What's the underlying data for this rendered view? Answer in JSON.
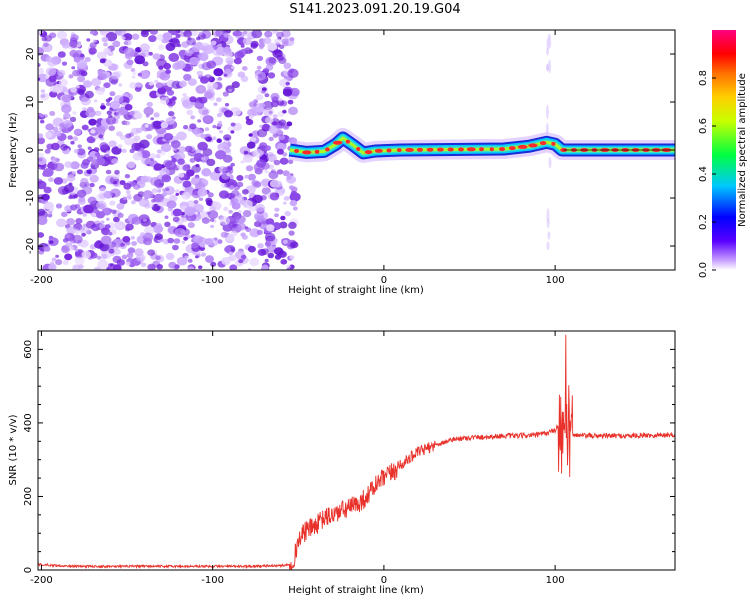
{
  "title": "S141.2023.091.20.19.G04",
  "colors": {
    "snr_line": "#e8312a",
    "noise_purple": "#7a2be0",
    "band_core": "#ff2a2a",
    "band_mid": "#3fe0c0",
    "band_outer": "#1a2bd8"
  },
  "chart_data": [
    {
      "type": "heatmap",
      "title": "S141.2023.091.20.19.G04",
      "xlabel": "Height of straight line (km)",
      "ylabel": "Frequency (Hz)",
      "xlim": [
        -202,
        170
      ],
      "ylim": [
        -25,
        25
      ],
      "xticks": [
        -200,
        -100,
        0,
        100
      ],
      "yticks": [
        -20,
        -10,
        0,
        10,
        20
      ],
      "colorbar": {
        "label": "Normalized spectral amplitude",
        "range": [
          0,
          1
        ],
        "ticks": [
          "0.0",
          "0.2",
          "0.4",
          "0.6",
          "0.8"
        ]
      },
      "noise_region": {
        "x_from": -202,
        "x_to": -55
      },
      "ridge": [
        {
          "x": -55,
          "f": 0.0
        },
        {
          "x": -45,
          "f": -0.5
        },
        {
          "x": -35,
          "f": -0.3
        },
        {
          "x": -28,
          "f": 1.2
        },
        {
          "x": -24,
          "f": 2.5
        },
        {
          "x": -18,
          "f": 1.0
        },
        {
          "x": -12,
          "f": -0.6
        },
        {
          "x": -5,
          "f": -0.2
        },
        {
          "x": 10,
          "f": 0.0
        },
        {
          "x": 40,
          "f": 0.1
        },
        {
          "x": 70,
          "f": 0.2
        },
        {
          "x": 85,
          "f": 0.8
        },
        {
          "x": 95,
          "f": 1.6
        },
        {
          "x": 100,
          "f": 1.2
        },
        {
          "x": 104,
          "f": 0.0
        },
        {
          "x": 120,
          "f": 0.0
        },
        {
          "x": 170,
          "f": 0.0
        }
      ]
    },
    {
      "type": "line",
      "xlabel": "Height of straight line (km)",
      "ylabel": "SNR (10 * v/v)",
      "xlim": [
        -202,
        170
      ],
      "ylim": [
        0,
        650
      ],
      "xticks": [
        -200,
        -100,
        0,
        100
      ],
      "yticks": [
        0,
        200,
        400,
        600
      ],
      "series": [
        {
          "x": [
            -202,
            -190,
            -180,
            -160,
            -140,
            -120,
            -100,
            -80,
            -60,
            -55,
            -52,
            -50,
            -45,
            -40,
            -35,
            -30,
            -25,
            -20,
            -15,
            -10,
            -5,
            0,
            5,
            10,
            15,
            20,
            25,
            30,
            40,
            50,
            60,
            70,
            80,
            90,
            95,
            100,
            103,
            106,
            108,
            110,
            115,
            120,
            140,
            160,
            170
          ],
          "values": [
            15,
            12,
            10,
            10,
            10,
            10,
            10,
            10,
            12,
            15,
            40,
            80,
            110,
            120,
            140,
            150,
            160,
            170,
            180,
            200,
            230,
            250,
            265,
            285,
            305,
            320,
            330,
            340,
            355,
            360,
            362,
            365,
            365,
            368,
            372,
            380,
            400,
            350,
            380,
            370,
            365,
            365,
            365,
            367,
            368
          ]
        }
      ]
    }
  ]
}
